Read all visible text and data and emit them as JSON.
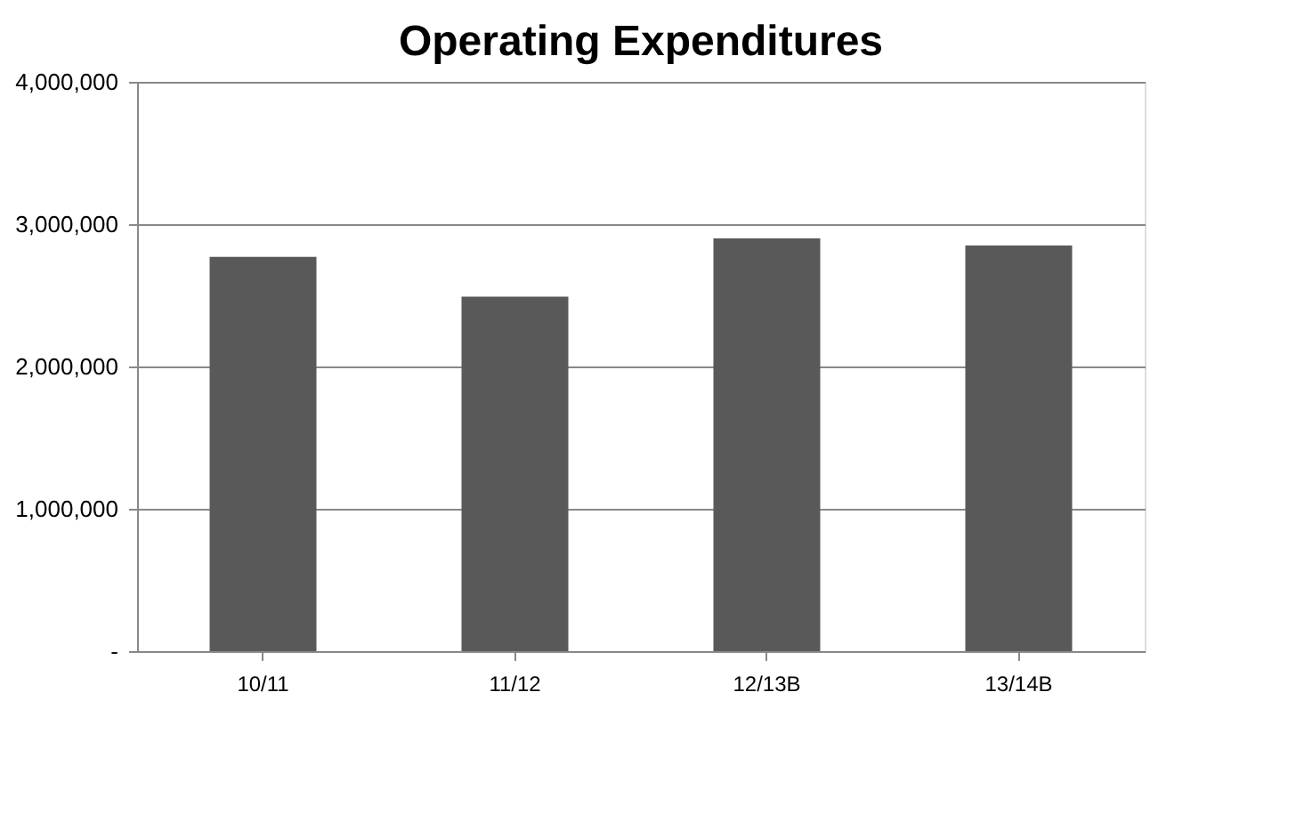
{
  "chart_data": {
    "type": "bar",
    "title": "Operating Expenditures",
    "categories": [
      "10/11",
      "11/12",
      "12/13B",
      "13/14B"
    ],
    "values": [
      2770000,
      2490000,
      2900000,
      2850000
    ],
    "color": "#595959",
    "ylim": [
      0,
      4000000
    ],
    "yticks": [
      {
        "value": 0,
        "label": "-"
      },
      {
        "value": 1000000,
        "label": "1,000,000"
      },
      {
        "value": 2000000,
        "label": "2,000,000"
      },
      {
        "value": 3000000,
        "label": "3,000,000"
      },
      {
        "value": 4000000,
        "label": "4,000,000"
      }
    ],
    "grid": "y"
  }
}
